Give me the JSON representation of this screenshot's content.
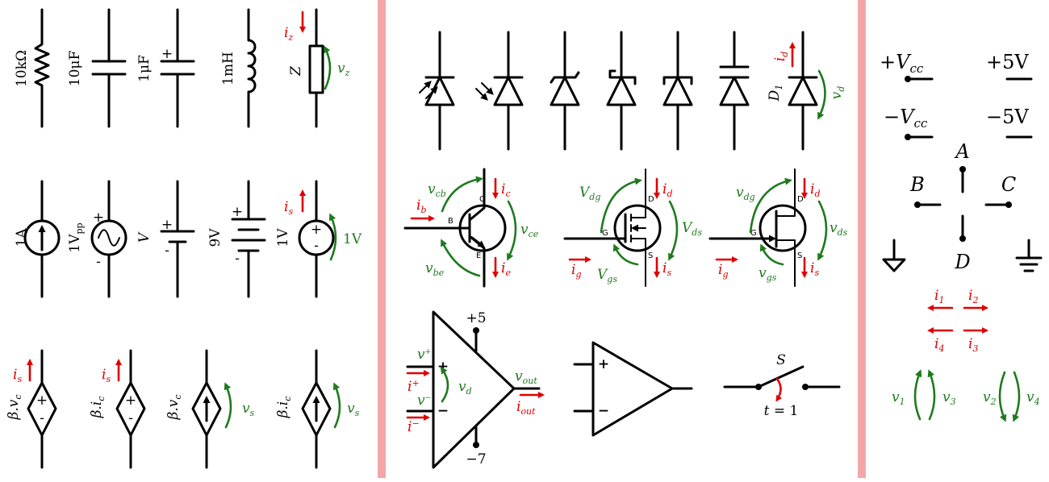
{
  "colors": {
    "separator": "#f4a6a6",
    "current": "#e00000",
    "voltage": "#1f7a1f",
    "ink": "#000000"
  },
  "left": {
    "resistor": "10kΩ",
    "capacitor": "10μF",
    "pol_capacitor": "1μF",
    "inductor": "1mH",
    "impedance": "Z",
    "impedance_current": "i",
    "impedance_current_sub": "z",
    "impedance_voltage": "v",
    "impedance_voltage_sub": "z",
    "current_source": "1A",
    "ac_source": "1V",
    "ac_source_sub": "pp",
    "dc_source": "V",
    "battery": "9V",
    "voltage_source": "1V",
    "voltage_source_current": "i",
    "voltage_source_current_sub": "s",
    "voltage_source_voltage": "1V",
    "dep1": "β.v",
    "dep1_sub": "c",
    "dep1_current": "i",
    "dep1_current_sub": "s",
    "dep2": "β.i",
    "dep2_sub": "c",
    "dep2_current": "i",
    "dep2_current_sub": "s",
    "dep3": "β.v",
    "dep3_sub": "c",
    "dep3_voltage": "v",
    "dep3_voltage_sub": "s",
    "dep4": "β.i",
    "dep4_sub": "c",
    "dep4_voltage": "v",
    "dep4_voltage_sub": "s",
    "plus": "+",
    "minus": "-"
  },
  "middle": {
    "diode_label": "D",
    "diode_label_sub": "1",
    "diode_current": "i",
    "diode_current_sub": "d",
    "diode_voltage": "v",
    "diode_voltage_sub": "d",
    "bjt": {
      "v_cb": "v",
      "v_cb_sub": "cb",
      "i_b": "i",
      "i_b_sub": "b",
      "v_be": "v",
      "v_be_sub": "be",
      "i_c": "i",
      "i_c_sub": "c",
      "v_ce": "v",
      "v_ce_sub": "ce",
      "i_e": "i",
      "i_e_sub": "e",
      "pin_c": "C",
      "pin_b": "B",
      "pin_e": "E"
    },
    "mosfet": {
      "v_dg": "V",
      "v_dg_sub": "dg",
      "i_d": "i",
      "i_d_sub": "d",
      "v_ds": "V",
      "v_ds_sub": "ds",
      "i_g": "i",
      "i_g_sub": "g",
      "v_gs": "V",
      "v_gs_sub": "gs",
      "i_s": "i",
      "i_s_sub": "s",
      "pin_d": "D",
      "pin_g": "G",
      "pin_s": "S"
    },
    "jfet": {
      "v_dg": "v",
      "v_dg_sub": "dg",
      "i_d": "i",
      "i_d_sub": "d",
      "v_ds": "v",
      "v_ds_sub": "ds",
      "i_g": "i",
      "i_g_sub": "g",
      "v_gs": "v",
      "v_gs_sub": "gs",
      "i_s": "i",
      "i_s_sub": "s",
      "pin_d": "D",
      "pin_g": "G",
      "pin_s": "S"
    },
    "opamp": {
      "supply_pos": "+5",
      "supply_neg": "−7",
      "v_plus": "v",
      "v_plus_sup": "+",
      "i_plus": "i",
      "i_plus_sup": "+",
      "v_minus": "v",
      "v_minus_sup": "−",
      "i_minus": "i",
      "i_minus_sup": "−",
      "v_d": "v",
      "v_d_sub": "d",
      "v_out": "v",
      "v_out_sub": "out",
      "i_out": "i",
      "i_out_sub": "out",
      "plus": "+",
      "minus": "−"
    },
    "switch": {
      "label": "S",
      "time_var": "t",
      "time_rest": " = 1"
    }
  },
  "right": {
    "vcc_pos_sign": "+",
    "vcc_pos": "V",
    "vcc_pos_sub": "cc",
    "five_pos": "+5V",
    "vcc_neg_sign": "−",
    "vcc_neg": "V",
    "vcc_neg_sub": "cc",
    "five_neg": "−5V",
    "node_a": "A",
    "node_b": "B",
    "node_c": "C",
    "node_d": "D",
    "i1": "i",
    "i1_sub": "1",
    "i2": "i",
    "i2_sub": "2",
    "i4": "i",
    "i4_sub": "4",
    "i3": "i",
    "i3_sub": "3",
    "v1": "v",
    "v1_sub": "1",
    "v3": "v",
    "v3_sub": "3",
    "v2": "v",
    "v2_sub": "2",
    "v4": "v",
    "v4_sub": "4"
  }
}
